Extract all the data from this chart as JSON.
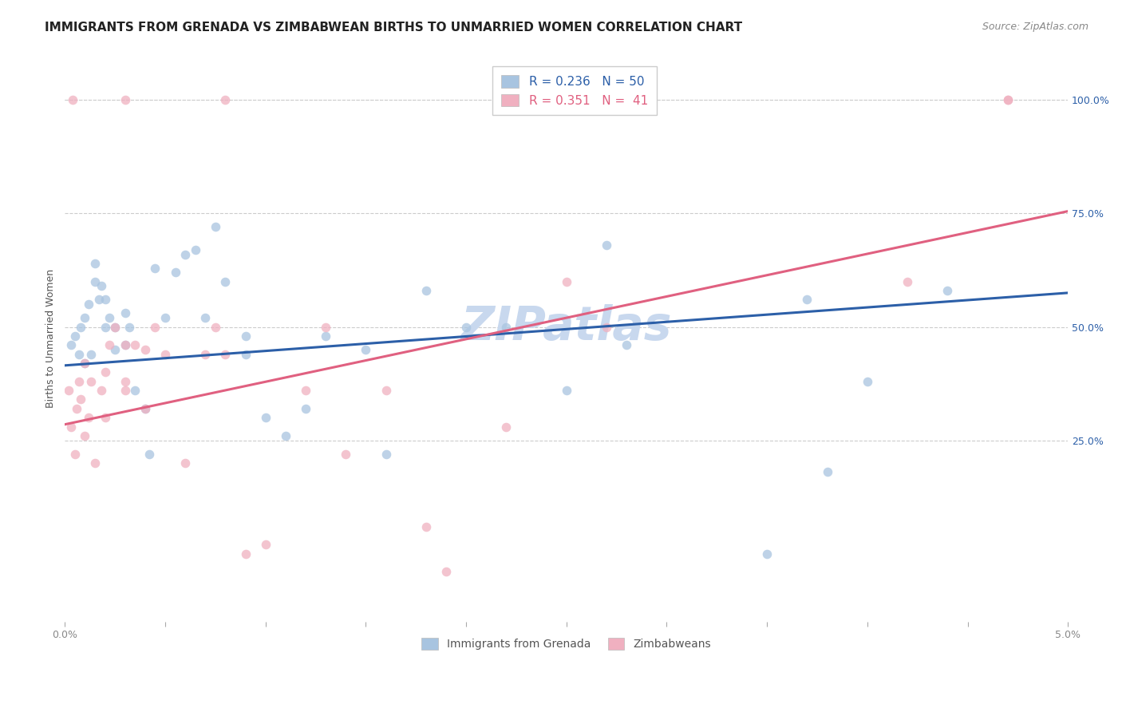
{
  "title": "IMMIGRANTS FROM GRENADA VS ZIMBABWEAN BIRTHS TO UNMARRIED WOMEN CORRELATION CHART",
  "source": "Source: ZipAtlas.com",
  "ylabel": "Births to Unmarried Women",
  "right_yticks": [
    25.0,
    50.0,
    75.0,
    100.0
  ],
  "watermark": "ZIPatlas",
  "legend_blue_r": "R = 0.236",
  "legend_blue_n": "N = 50",
  "legend_pink_r": "R = 0.351",
  "legend_pink_n": "N =  41",
  "legend_label_blue": "Immigrants from Grenada",
  "legend_label_pink": "Zimbabweans",
  "blue_color": "#a8c4e0",
  "pink_color": "#f0b0c0",
  "blue_line_color": "#2c5fa8",
  "pink_line_color": "#e06080",
  "scatter_alpha": 0.75,
  "xmin": 0.0,
  "xmax": 0.05,
  "ymin": -0.15,
  "ymax": 1.1,
  "blue_scatter_x": [
    0.0003,
    0.0005,
    0.0007,
    0.0008,
    0.001,
    0.001,
    0.0012,
    0.0013,
    0.0015,
    0.0015,
    0.0017,
    0.0018,
    0.002,
    0.002,
    0.0022,
    0.0025,
    0.0025,
    0.003,
    0.003,
    0.0032,
    0.0035,
    0.004,
    0.0042,
    0.0045,
    0.005,
    0.006,
    0.007,
    0.0075,
    0.009,
    0.01,
    0.011,
    0.012,
    0.013,
    0.015,
    0.016,
    0.018,
    0.022,
    0.025,
    0.027,
    0.028,
    0.035,
    0.037,
    0.038,
    0.04,
    0.044,
    0.0055,
    0.0065,
    0.008,
    0.009,
    0.02
  ],
  "blue_scatter_y": [
    0.46,
    0.48,
    0.44,
    0.5,
    0.42,
    0.52,
    0.55,
    0.44,
    0.6,
    0.64,
    0.56,
    0.59,
    0.5,
    0.56,
    0.52,
    0.45,
    0.5,
    0.46,
    0.53,
    0.5,
    0.36,
    0.32,
    0.22,
    0.63,
    0.52,
    0.66,
    0.52,
    0.72,
    0.44,
    0.3,
    0.26,
    0.32,
    0.48,
    0.45,
    0.22,
    0.58,
    0.5,
    0.36,
    0.68,
    0.46,
    0.0,
    0.56,
    0.18,
    0.38,
    0.58,
    0.62,
    0.67,
    0.6,
    0.48,
    0.5
  ],
  "pink_scatter_x": [
    0.0002,
    0.0003,
    0.0005,
    0.0006,
    0.0007,
    0.0008,
    0.001,
    0.001,
    0.0012,
    0.0013,
    0.0015,
    0.0018,
    0.002,
    0.002,
    0.0022,
    0.0025,
    0.003,
    0.003,
    0.003,
    0.0035,
    0.004,
    0.004,
    0.0045,
    0.005,
    0.006,
    0.007,
    0.0075,
    0.008,
    0.009,
    0.01,
    0.012,
    0.013,
    0.014,
    0.016,
    0.018,
    0.019,
    0.022,
    0.025,
    0.027,
    0.042,
    0.047
  ],
  "pink_scatter_y": [
    0.36,
    0.28,
    0.22,
    0.32,
    0.38,
    0.34,
    0.42,
    0.26,
    0.3,
    0.38,
    0.2,
    0.36,
    0.4,
    0.3,
    0.46,
    0.5,
    0.46,
    0.38,
    0.36,
    0.46,
    0.32,
    0.45,
    0.5,
    0.44,
    0.2,
    0.44,
    0.5,
    0.44,
    0.0,
    0.02,
    0.36,
    0.5,
    0.22,
    0.36,
    0.06,
    -0.04,
    0.28,
    0.6,
    0.5,
    0.6,
    1.0
  ],
  "top_pink_points_x": [
    0.0004,
    0.003,
    0.008,
    0.047
  ],
  "top_pink_points_y": [
    1.0,
    1.0,
    1.0,
    1.0
  ],
  "blue_line_x0": 0.0,
  "blue_line_y0": 0.415,
  "blue_line_x1": 0.05,
  "blue_line_y1": 0.575,
  "pink_line_x0": 0.0,
  "pink_line_y0": 0.285,
  "pink_line_x1": 0.05,
  "pink_line_y1": 0.755,
  "grid_color": "#cccccc",
  "background_color": "#ffffff",
  "title_fontsize": 11,
  "source_fontsize": 9,
  "axis_label_fontsize": 9,
  "tick_fontsize": 9,
  "watermark_fontsize": 42,
  "watermark_color": "#c8d8ee",
  "marker_size": 70
}
